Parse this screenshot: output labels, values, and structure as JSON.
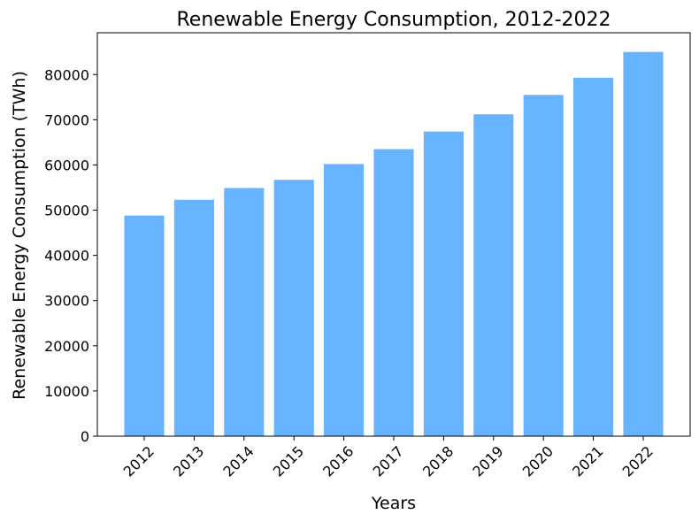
{
  "chart_data": {
    "type": "bar",
    "title": "Renewable Energy Consumption, 2012-2022",
    "xlabel": "Years",
    "ylabel": "Renewable Energy Consumption (TWh)",
    "categories": [
      "2012",
      "2013",
      "2014",
      "2015",
      "2016",
      "2017",
      "2018",
      "2019",
      "2020",
      "2021",
      "2022"
    ],
    "values": [
      48800,
      52300,
      54900,
      56700,
      60200,
      63500,
      67400,
      71200,
      75500,
      79300,
      85000
    ],
    "ylim": [
      0,
      89250
    ],
    "yticks": [
      0,
      10000,
      20000,
      30000,
      40000,
      50000,
      60000,
      70000,
      80000
    ],
    "ytick_labels": [
      "0",
      "10000",
      "20000",
      "30000",
      "40000",
      "50000",
      "60000",
      "70000",
      "80000"
    ],
    "bar_color": "#66b3ff",
    "grid": false,
    "legend": "none"
  }
}
